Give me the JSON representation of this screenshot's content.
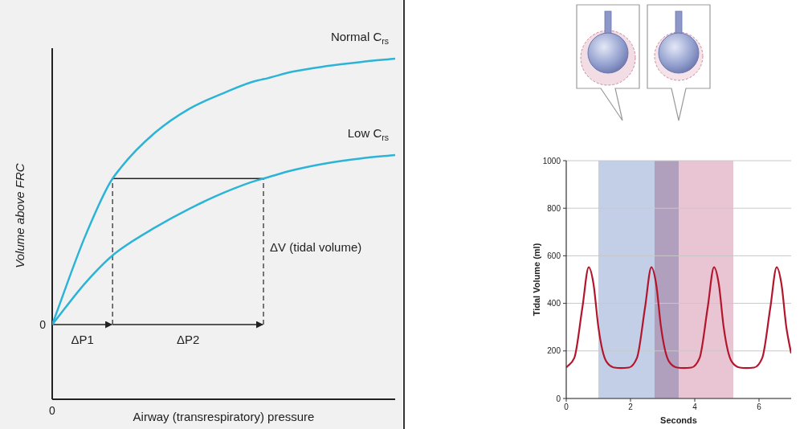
{
  "chart_data": [
    {
      "type": "line",
      "x_label": "Airway (transrespiratory) pressure",
      "y_label": "Volume above FRC",
      "xlim": [
        0,
        10
      ],
      "ylim": [
        -2,
        7.4
      ],
      "xticks": [
        0
      ],
      "yticks": [
        0
      ],
      "x": [
        0,
        1,
        1.76,
        2,
        3,
        4,
        5,
        6,
        6.16,
        7,
        8,
        9,
        10
      ],
      "series": [
        {
          "name": "Normal Crs",
          "color": "#2cb4d8",
          "values": [
            0,
            2.45,
            3.91,
            4.2,
            5.14,
            5.78,
            6.2,
            6.54,
            6.57,
            6.77,
            6.92,
            7.03,
            7.12
          ]
        },
        {
          "name": "Low Crs",
          "color": "#2cb4d8",
          "values": [
            0,
            1.15,
            1.85,
            2.02,
            2.6,
            3.1,
            3.53,
            3.87,
            3.91,
            4.13,
            4.32,
            4.45,
            4.54
          ]
        }
      ],
      "annotations": [
        {
          "text": "ΔP1",
          "x": [
            0,
            1.76
          ],
          "y": 0
        },
        {
          "text": "ΔP2",
          "x": [
            1.76,
            6.16
          ],
          "y": 0
        },
        {
          "text": "ΔV (tidal volume)",
          "x": 6.16,
          "y": [
            0,
            3.91
          ]
        }
      ]
    },
    {
      "type": "line",
      "x_label": "Seconds",
      "y_label": "Tidal Volume (ml)",
      "xlim": [
        0,
        7
      ],
      "ylim": [
        0,
        1000
      ],
      "xticks": [
        0,
        2,
        4,
        6
      ],
      "yticks": [
        0,
        200,
        400,
        600,
        800,
        1000
      ],
      "grid": true,
      "x": [
        0,
        0.25,
        0.5,
        0.7,
        0.85,
        1.0,
        1.25,
        1.5,
        1.7,
        1.95,
        2.2,
        2.45,
        2.65,
        2.8,
        2.95,
        3.2,
        3.45,
        3.65,
        3.9,
        4.15,
        4.4,
        4.6,
        4.75,
        4.9,
        5.15,
        5.4,
        5.6,
        5.85,
        6.1,
        6.35,
        6.55,
        6.7,
        6.85,
        7.0
      ],
      "series": [
        {
          "color": "#b3162c",
          "values": [
            130,
            170,
            380,
            552,
            480,
            300,
            155,
            130,
            128,
            130,
            170,
            380,
            552,
            480,
            300,
            155,
            130,
            128,
            130,
            170,
            380,
            552,
            480,
            300,
            155,
            130,
            128,
            130,
            170,
            380,
            552,
            480,
            300,
            190
          ]
        }
      ],
      "bands": [
        {
          "x": [
            1,
            3.5
          ],
          "color": "#c2cfe6"
        },
        {
          "x": [
            2.75,
            5.2
          ],
          "color": "#e9c4d3"
        }
      ]
    }
  ]
}
